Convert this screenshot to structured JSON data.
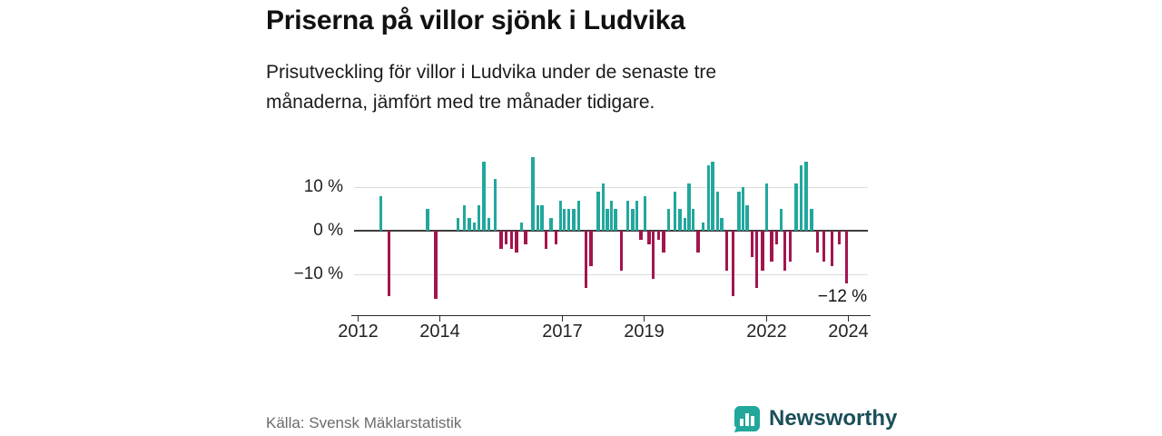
{
  "header": {
    "title": "Priserna på villor sjönk i Ludvika",
    "subtitle": "Prisutveckling för villor i Ludvika under de senaste tre månaderna, jämfört med tre månader tidigare."
  },
  "footer": {
    "source": "Källa: Svensk Mäklarstatistik",
    "brand": "Newsworthy"
  },
  "colors": {
    "positive": "#22a79d",
    "negative": "#a3154f",
    "grid": "#dcdcdc",
    "zero_line": "#3c3c3c",
    "axis": "#2a2a2a",
    "brand_text": "#1a4f58"
  },
  "chart_data": {
    "type": "bar",
    "title": "Priserna på villor sjönk i Ludvika",
    "xlabel": "",
    "ylabel": "",
    "unit": "%",
    "ylim": [
      -19.5,
      18
    ],
    "x_range": [
      2012,
      2024.5
    ],
    "grid": true,
    "x_ticks": [
      2012,
      2014,
      2017,
      2019,
      2022,
      2024
    ],
    "y_ticks": [
      {
        "v": 10,
        "label": "10 %"
      },
      {
        "v": 0,
        "label": "0 %"
      },
      {
        "v": -10,
        "label": "−10 %"
      }
    ],
    "annotation": {
      "label": "−12 %",
      "t": 2023.25,
      "v": -12.8
    },
    "points": [
      [
        2012.55,
        8
      ],
      [
        2012.75,
        -15
      ],
      [
        2013.7,
        5
      ],
      [
        2013.9,
        -15.5
      ],
      [
        2014.45,
        3
      ],
      [
        2014.6,
        6
      ],
      [
        2014.72,
        3
      ],
      [
        2014.85,
        2
      ],
      [
        2014.95,
        6
      ],
      [
        2015.08,
        16
      ],
      [
        2015.2,
        3
      ],
      [
        2015.35,
        12
      ],
      [
        2015.5,
        -4
      ],
      [
        2015.62,
        -3
      ],
      [
        2015.75,
        -4
      ],
      [
        2015.88,
        -5
      ],
      [
        2016.0,
        2
      ],
      [
        2016.1,
        -3
      ],
      [
        2016.28,
        17
      ],
      [
        2016.4,
        6
      ],
      [
        2016.5,
        6
      ],
      [
        2016.6,
        -4
      ],
      [
        2016.72,
        3
      ],
      [
        2016.85,
        -3
      ],
      [
        2016.95,
        7
      ],
      [
        2017.05,
        5
      ],
      [
        2017.15,
        5
      ],
      [
        2017.28,
        5
      ],
      [
        2017.4,
        7
      ],
      [
        2017.58,
        -13
      ],
      [
        2017.7,
        -8
      ],
      [
        2017.88,
        9
      ],
      [
        2018.0,
        11
      ],
      [
        2018.1,
        5
      ],
      [
        2018.2,
        7
      ],
      [
        2018.3,
        5
      ],
      [
        2018.45,
        -9
      ],
      [
        2018.6,
        7
      ],
      [
        2018.72,
        5
      ],
      [
        2018.82,
        7
      ],
      [
        2018.92,
        -2
      ],
      [
        2019.02,
        8
      ],
      [
        2019.12,
        -3
      ],
      [
        2019.22,
        -11
      ],
      [
        2019.35,
        -2
      ],
      [
        2019.48,
        -5
      ],
      [
        2019.6,
        5
      ],
      [
        2019.75,
        9
      ],
      [
        2019.88,
        5
      ],
      [
        2020.0,
        3
      ],
      [
        2020.1,
        11
      ],
      [
        2020.2,
        5
      ],
      [
        2020.32,
        -5
      ],
      [
        2020.45,
        2
      ],
      [
        2020.58,
        15
      ],
      [
        2020.68,
        16
      ],
      [
        2020.8,
        9
      ],
      [
        2020.9,
        3
      ],
      [
        2021.02,
        -9
      ],
      [
        2021.18,
        -15
      ],
      [
        2021.32,
        9
      ],
      [
        2021.42,
        10
      ],
      [
        2021.52,
        6
      ],
      [
        2021.64,
        -6
      ],
      [
        2021.76,
        -13
      ],
      [
        2021.9,
        -9
      ],
      [
        2022.0,
        11
      ],
      [
        2022.12,
        -7
      ],
      [
        2022.25,
        -3
      ],
      [
        2022.35,
        5
      ],
      [
        2022.45,
        -9
      ],
      [
        2022.58,
        -7
      ],
      [
        2022.72,
        11
      ],
      [
        2022.85,
        15
      ],
      [
        2022.97,
        16
      ],
      [
        2023.1,
        5
      ],
      [
        2023.25,
        -5
      ],
      [
        2023.4,
        -7
      ],
      [
        2023.6,
        -8
      ],
      [
        2023.78,
        -3
      ],
      [
        2023.95,
        -12
      ]
    ]
  }
}
